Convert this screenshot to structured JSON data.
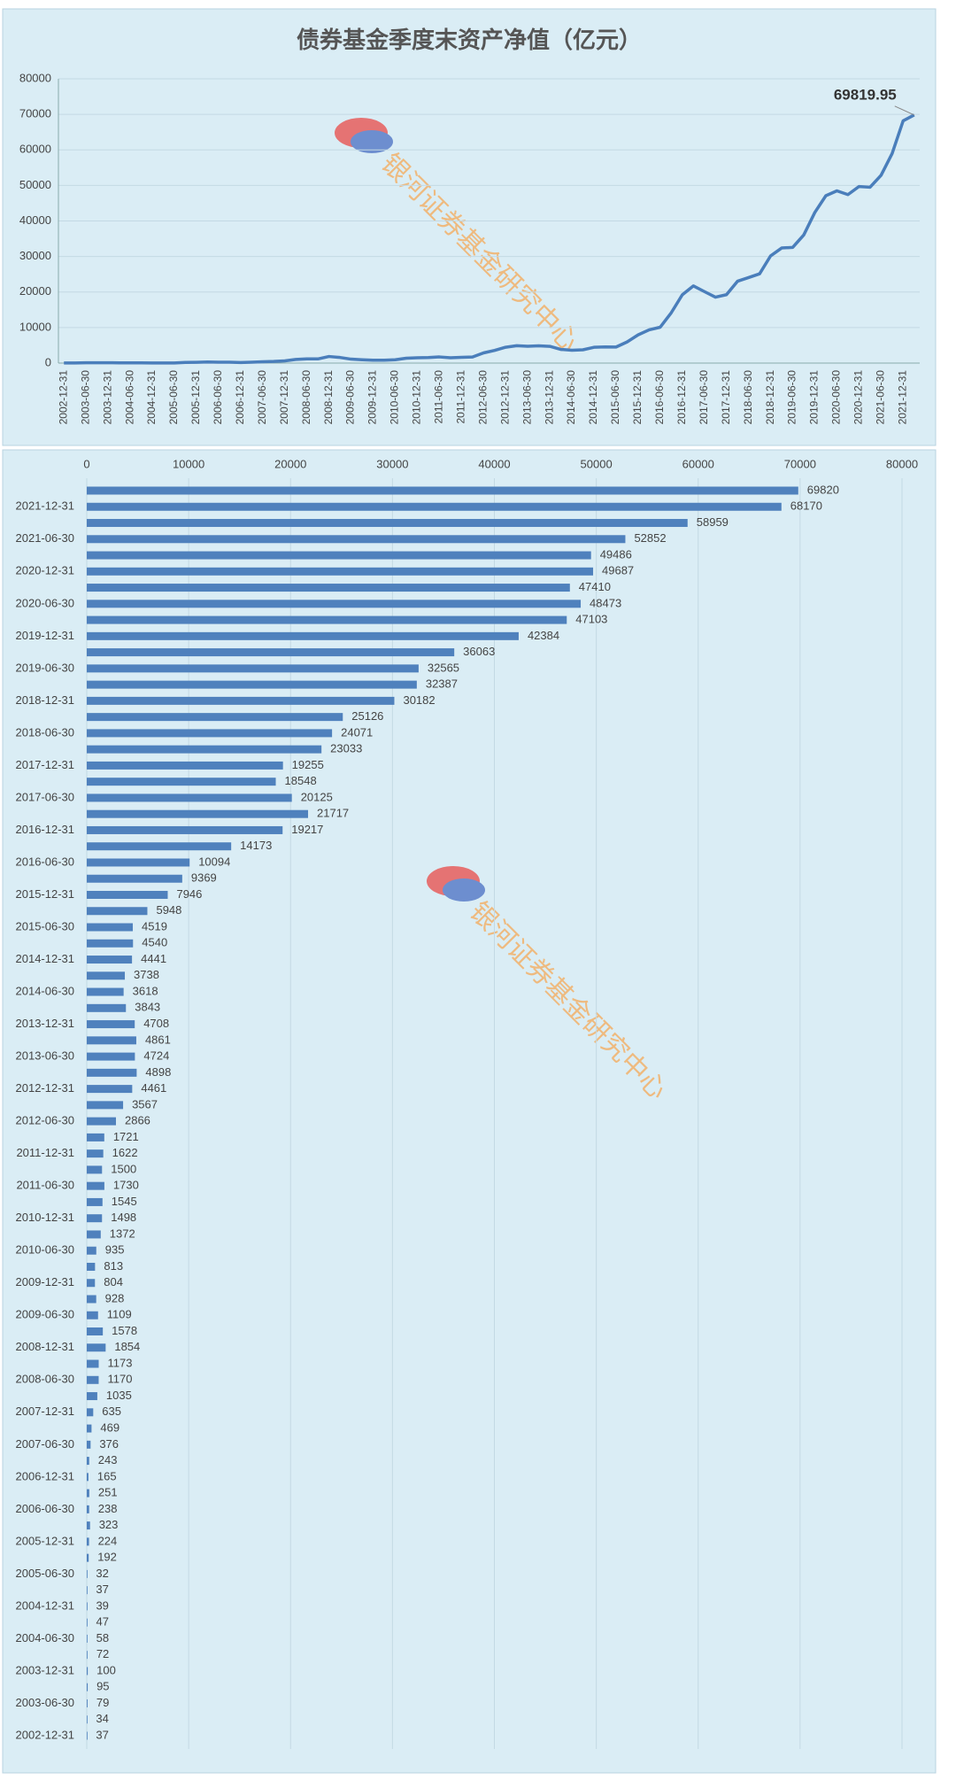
{
  "chart_data": [
    {
      "type": "line",
      "title": "债券基金季度末资产净值（亿元）",
      "categories": [
        "2002-12-31",
        null,
        "2003-06-30",
        null,
        "2003-12-31",
        null,
        "2004-06-30",
        null,
        "2004-12-31",
        null,
        "2005-06-30",
        null,
        "2005-12-31",
        null,
        "2006-06-30",
        null,
        "2006-12-31",
        null,
        "2007-06-30",
        null,
        "2007-12-31",
        null,
        "2008-06-30",
        null,
        "2008-12-31",
        null,
        "2009-06-30",
        null,
        "2009-12-31",
        null,
        "2010-06-30",
        null,
        "2010-12-31",
        null,
        "2011-06-30",
        null,
        "2011-12-31",
        null,
        "2012-06-30",
        null,
        "2012-12-31",
        null,
        "2013-06-30",
        null,
        "2013-12-31",
        null,
        "2014-06-30",
        null,
        "2014-12-31",
        null,
        "2015-06-30",
        null,
        "2015-12-31",
        null,
        "2016-06-30",
        null,
        "2016-12-31",
        null,
        "2017-06-30",
        null,
        "2017-12-31",
        null,
        "2018-06-30",
        null,
        "2018-12-31",
        null,
        "2019-06-30",
        null,
        "2019-12-31",
        null,
        "2020-06-30",
        null,
        "2020-12-31",
        null,
        "2021-06-30",
        null,
        "2021-12-31",
        null
      ],
      "values": [
        37,
        34,
        79,
        95,
        100,
        72,
        58,
        47,
        39,
        37,
        32,
        192,
        224,
        323,
        238,
        251,
        165,
        243,
        376,
        469,
        635,
        1035,
        1170,
        1173,
        1854,
        1578,
        1109,
        928,
        804,
        813,
        935,
        1372,
        1498,
        1545,
        1730,
        1500,
        1622,
        1721,
        2866,
        3567,
        4461,
        4898,
        4724,
        4861,
        4708,
        3843,
        3618,
        3738,
        4441,
        4540,
        4519,
        5948,
        7946,
        9369,
        10094,
        14173,
        19217,
        21717,
        20125,
        18548,
        19255,
        23033,
        24071,
        25126,
        30182,
        32387,
        32565,
        36063,
        42384,
        47103,
        48473,
        47410,
        49687,
        49486,
        52852,
        58959,
        68170,
        69819.95
      ],
      "annotation": "69819.95",
      "color": "#4a7ebb",
      "ylim": [
        0,
        80000
      ],
      "yticks": [
        0,
        10000,
        20000,
        30000,
        40000,
        50000,
        60000,
        70000,
        80000
      ],
      "grid": true,
      "watermark": "银河证券基金研究中心"
    },
    {
      "type": "hbar",
      "categories": [
        "2002-12-31",
        null,
        "2003-06-30",
        null,
        "2003-12-31",
        null,
        "2004-06-30",
        null,
        "2004-12-31",
        null,
        "2005-06-30",
        null,
        "2005-12-31",
        null,
        "2006-06-30",
        null,
        "2006-12-31",
        null,
        "2007-06-30",
        null,
        "2007-12-31",
        null,
        "2008-06-30",
        null,
        "2008-12-31",
        null,
        "2009-06-30",
        null,
        "2009-12-31",
        null,
        "2010-06-30",
        null,
        "2010-12-31",
        null,
        "2011-06-30",
        null,
        "2011-12-31",
        null,
        "2012-06-30",
        null,
        "2012-12-31",
        null,
        "2013-06-30",
        null,
        "2013-12-31",
        null,
        "2014-06-30",
        null,
        "2014-12-31",
        null,
        "2015-06-30",
        null,
        "2015-12-31",
        null,
        "2016-06-30",
        null,
        "2016-12-31",
        null,
        "2017-06-30",
        null,
        "2017-12-31",
        null,
        "2018-06-30",
        null,
        "2018-12-31",
        null,
        "2019-06-30",
        null,
        "2019-12-31",
        null,
        "2020-06-30",
        null,
        "2020-12-31",
        null,
        "2021-06-30",
        null,
        "2021-12-31",
        null
      ],
      "values": [
        37,
        34,
        79,
        95,
        100,
        72,
        58,
        47,
        39,
        37,
        32,
        192,
        224,
        323,
        238,
        251,
        165,
        243,
        376,
        469,
        635,
        1035,
        1170,
        1173,
        1854,
        1578,
        1109,
        928,
        804,
        813,
        935,
        1372,
        1498,
        1545,
        1730,
        1500,
        1622,
        1721,
        2866,
        3567,
        4461,
        4898,
        4724,
        4861,
        4708,
        3843,
        3618,
        3738,
        4441,
        4540,
        4519,
        5948,
        7946,
        9369,
        10094,
        14173,
        19217,
        21717,
        20125,
        18548,
        19255,
        23033,
        24071,
        25126,
        30182,
        32387,
        32565,
        36063,
        42384,
        47103,
        48473,
        47410,
        49687,
        49486,
        52852,
        58959,
        68170,
        69820
      ],
      "color": "#4f81bd",
      "xlim": [
        0,
        80000
      ],
      "xticks": [
        0,
        10000,
        20000,
        30000,
        40000,
        50000,
        60000,
        70000,
        80000
      ],
      "grid": true,
      "watermark": "银河证券基金研究中心"
    }
  ]
}
